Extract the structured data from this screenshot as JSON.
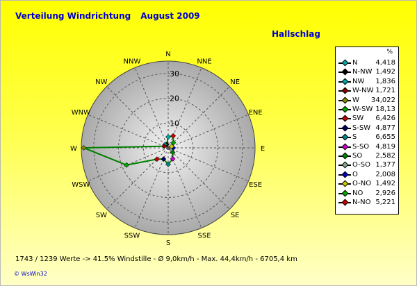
{
  "title": {
    "main": "Verteilung Windrichtung",
    "date": "August 2009"
  },
  "station": "Hallschlag",
  "legend_unit": "%",
  "footer": "1743 / 1239 Werte  -> 41.5% Windstille   -    Ø 9,0km/h  -  Max. 44,4km/h   -   6705,4 km",
  "credit": "© WsWin32",
  "chart_data": {
    "type": "radar",
    "title": "Verteilung Windrichtung",
    "subtitle": "August 2009",
    "rings": [
      10,
      20,
      30
    ],
    "rmax": 35,
    "compass": [
      "N",
      "NNE",
      "NE",
      "ENE",
      "E",
      "ESE",
      "SE",
      "SSE",
      "S",
      "SSW",
      "SW",
      "WSW",
      "W",
      "WNW",
      "NW",
      "NNW"
    ],
    "series": [
      {
        "name": "N",
        "value": "4,418",
        "color": "#00aaaa"
      },
      {
        "name": "N-NW",
        "value": "1,492",
        "color": "#000000"
      },
      {
        "name": "NW",
        "value": "1,836",
        "color": "#00aaaa"
      },
      {
        "name": "W-NW",
        "value": "1,721",
        "color": "#880000"
      },
      {
        "name": "W",
        "value": "34,022",
        "color": "#888800"
      },
      {
        "name": "W-SW",
        "value": "18,13",
        "color": "#00aa00"
      },
      {
        "name": "SW",
        "value": "6,426",
        "color": "#cc0000"
      },
      {
        "name": "S-SW",
        "value": "4,877",
        "color": "#000066"
      },
      {
        "name": "S",
        "value": "6,655",
        "color": "#008888"
      },
      {
        "name": "S-SO",
        "value": "4,819",
        "color": "#cc00cc"
      },
      {
        "name": "SO",
        "value": "2,582",
        "color": "#008800"
      },
      {
        "name": "O-SO",
        "value": "1,377",
        "color": "#88aa88"
      },
      {
        "name": "O",
        "value": "2,008",
        "color": "#0000cc"
      },
      {
        "name": "O-NO",
        "value": "1,492",
        "color": "#cccc00"
      },
      {
        "name": "NO",
        "value": "2,926",
        "color": "#00aa00"
      },
      {
        "name": "N-NO",
        "value": "5,221",
        "color": "#cc0000"
      }
    ],
    "polygon_color": "#008000"
  }
}
